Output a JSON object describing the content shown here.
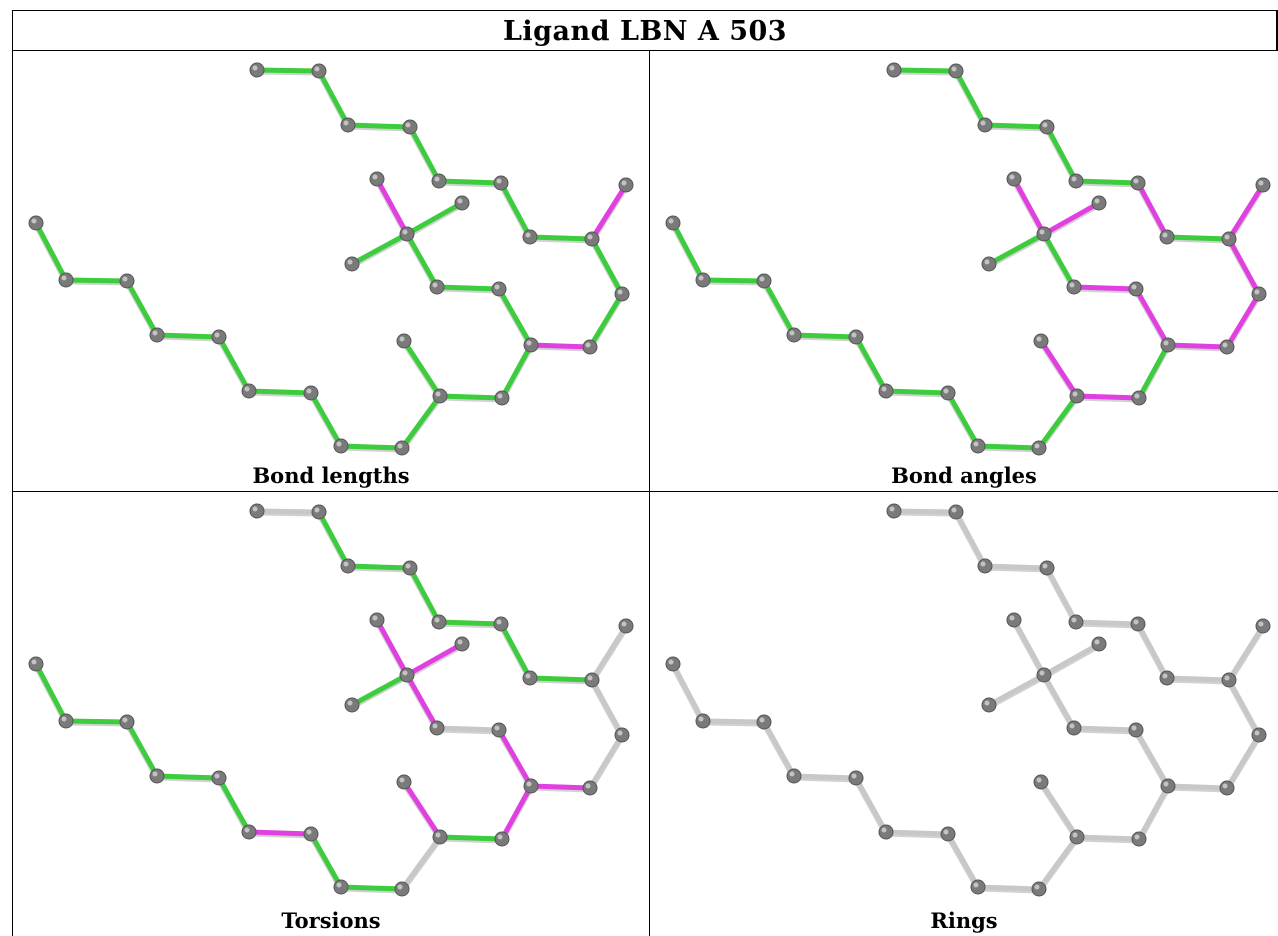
{
  "title": "Ligand LBN A 503",
  "colors": {
    "good": "#3dcc3d",
    "outlier": "#e040e0",
    "unassessed": "#c8c8c8",
    "atom": "#7a7a7a"
  },
  "panels": [
    {
      "caption": "Bond lengths",
      "bond_status": [
        "good",
        "good",
        "good",
        "good",
        "good",
        "good",
        "good",
        "outlier",
        "good",
        "good",
        "outlier",
        "good",
        "good",
        "good",
        "outlier",
        "good",
        "good",
        "good",
        "good",
        "good",
        "good",
        "good",
        "good",
        "good",
        "good",
        "good",
        "good",
        "good",
        "good"
      ]
    },
    {
      "caption": "Bond angles",
      "bond_status": [
        "good",
        "good",
        "good",
        "good",
        "good",
        "outlier",
        "good",
        "outlier",
        "outlier",
        "outlier",
        "outlier",
        "good",
        "outlier",
        "outlier",
        "outlier",
        "outlier",
        "good",
        "good",
        "outlier",
        "outlier",
        "good",
        "good",
        "good",
        "good",
        "good",
        "good",
        "good",
        "good",
        "good"
      ]
    },
    {
      "caption": "Torsions",
      "bond_status": [
        "unassessed",
        "good",
        "good",
        "good",
        "good",
        "good",
        "good",
        "unassessed",
        "unassessed",
        "unassessed",
        "outlier",
        "outlier",
        "good",
        "outlier",
        "outlier",
        "outlier",
        "good",
        "outlier",
        "unassessed",
        "outlier",
        "good",
        "good",
        "good",
        "good",
        "good",
        "outlier",
        "good",
        "good",
        "unassessed"
      ]
    },
    {
      "caption": "Rings",
      "bond_status": [
        "unassessed",
        "unassessed",
        "unassessed",
        "unassessed",
        "unassessed",
        "unassessed",
        "unassessed",
        "unassessed",
        "unassessed",
        "unassessed",
        "unassessed",
        "unassessed",
        "unassessed",
        "unassessed",
        "unassessed",
        "unassessed",
        "unassessed",
        "unassessed",
        "unassessed",
        "unassessed",
        "unassessed",
        "unassessed",
        "unassessed",
        "unassessed",
        "unassessed",
        "unassessed",
        "unassessed",
        "unassessed",
        "unassessed"
      ]
    }
  ]
}
